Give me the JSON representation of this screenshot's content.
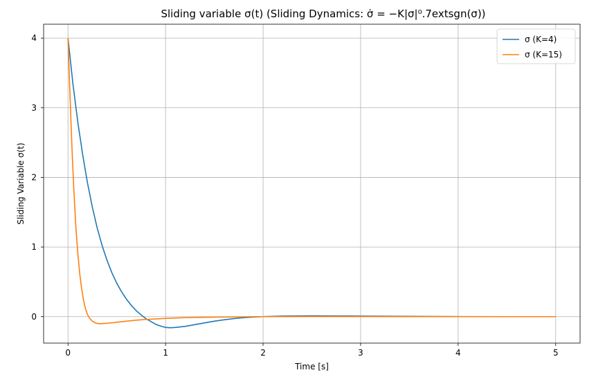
{
  "chart_data": {
    "type": "line",
    "title": "Sliding variable σ(t) (Sliding Dynamics: σ̇ = −K|σ|⁰.7extsgn(σ))",
    "xlabel": "Time [s]",
    "ylabel": "Sliding Variable σ(t)",
    "xlim": [
      -0.25,
      5.25
    ],
    "ylim": [
      -0.38,
      4.2
    ],
    "x_ticks": [
      0,
      1,
      2,
      3,
      4,
      5
    ],
    "y_ticks": [
      0,
      1,
      2,
      3,
      4
    ],
    "x_tick_labels": [
      "0",
      "1",
      "2",
      "3",
      "4",
      "5"
    ],
    "y_tick_labels": [
      "0",
      "1",
      "2",
      "3",
      "4"
    ],
    "grid": true,
    "legend_position": "top-right",
    "series": [
      {
        "name": "σ (K=4)",
        "color": "#1f77b4",
        "x": [
          0,
          0.05,
          0.1,
          0.15,
          0.2,
          0.25,
          0.3,
          0.35,
          0.4,
          0.45,
          0.5,
          0.55,
          0.6,
          0.65,
          0.7,
          0.75,
          0.8,
          0.85,
          0.9,
          0.95,
          1.0,
          1.05,
          1.1,
          1.2,
          1.3,
          1.4,
          1.5,
          1.6,
          1.7,
          1.8,
          1.9,
          2.0,
          2.2,
          2.5,
          2.8,
          3.0,
          3.5,
          4.0,
          4.5,
          5.0
        ],
        "y": [
          4.0,
          3.35,
          2.8,
          2.33,
          1.92,
          1.57,
          1.27,
          1.02,
          0.81,
          0.63,
          0.48,
          0.355,
          0.25,
          0.16,
          0.085,
          0.025,
          -0.03,
          -0.07,
          -0.11,
          -0.135,
          -0.155,
          -0.16,
          -0.155,
          -0.14,
          -0.115,
          -0.09,
          -0.065,
          -0.045,
          -0.028,
          -0.015,
          -0.006,
          0.0,
          0.008,
          0.012,
          0.01,
          0.008,
          0.004,
          0.001,
          0.0,
          0.0
        ]
      },
      {
        "name": "σ (K=15)",
        "color": "#ff7f0e",
        "x": [
          0,
          0.02,
          0.04,
          0.06,
          0.08,
          0.1,
          0.12,
          0.14,
          0.16,
          0.18,
          0.2,
          0.22,
          0.25,
          0.28,
          0.31,
          0.35,
          0.4,
          0.45,
          0.5,
          0.6,
          0.7,
          0.8,
          1.0,
          1.2,
          1.5,
          2.0,
          2.5,
          3.0,
          3.5,
          4.0,
          5.0
        ],
        "y": [
          4.0,
          3.2,
          2.45,
          1.82,
          1.3,
          0.92,
          0.62,
          0.4,
          0.23,
          0.11,
          0.03,
          -0.02,
          -0.065,
          -0.09,
          -0.1,
          -0.1,
          -0.095,
          -0.088,
          -0.08,
          -0.065,
          -0.05,
          -0.04,
          -0.025,
          -0.015,
          -0.007,
          0.0,
          0.002,
          0.002,
          0.001,
          0.0,
          0.0
        ]
      }
    ]
  }
}
